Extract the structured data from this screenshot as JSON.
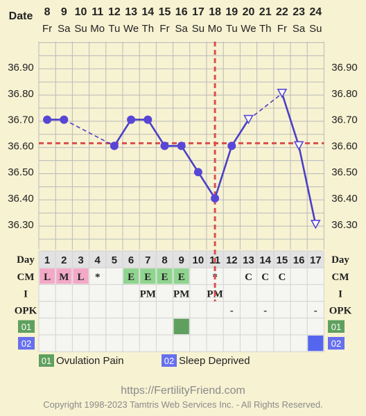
{
  "chart_data": {
    "type": "line",
    "header": {
      "date_label": "Date"
    },
    "dates": [
      "8",
      "9",
      "10",
      "11",
      "12",
      "13",
      "14",
      "15",
      "16",
      "17",
      "18",
      "19",
      "20",
      "21",
      "22",
      "23",
      "24"
    ],
    "weekdays": [
      "Fr",
      "Sa",
      "Su",
      "Mo",
      "Tu",
      "We",
      "Th",
      "Fr",
      "Sa",
      "Su",
      "Mo",
      "Tu",
      "We",
      "Th",
      "Fr",
      "Sa",
      "Su"
    ],
    "y_ticks": [
      "36.90",
      "36.80",
      "36.70",
      "36.60",
      "36.50",
      "36.40",
      "36.30"
    ],
    "ylim": [
      36.25,
      36.95
    ],
    "cover_line": 36.61,
    "ovulation_cycle_day": 11,
    "temperatures": [
      {
        "day": 1,
        "temp": 36.7,
        "marker": "filled"
      },
      {
        "day": 2,
        "temp": 36.7,
        "marker": "filled"
      },
      {
        "day": 5,
        "temp": 36.6,
        "marker": "filled"
      },
      {
        "day": 6,
        "temp": 36.7,
        "marker": "filled"
      },
      {
        "day": 7,
        "temp": 36.7,
        "marker": "filled"
      },
      {
        "day": 8,
        "temp": 36.6,
        "marker": "filled"
      },
      {
        "day": 9,
        "temp": 36.6,
        "marker": "filled"
      },
      {
        "day": 10,
        "temp": 36.5,
        "marker": "filled"
      },
      {
        "day": 11,
        "temp": 36.4,
        "marker": "filled"
      },
      {
        "day": 12,
        "temp": 36.6,
        "marker": "filled"
      },
      {
        "day": 13,
        "temp": 36.7,
        "marker": "open-triangle"
      },
      {
        "day": 15,
        "temp": 36.8,
        "marker": "open-triangle"
      },
      {
        "day": 16,
        "temp": 36.6,
        "marker": "open-triangle"
      },
      {
        "day": 17,
        "temp": 36.3,
        "marker": "open-triangle"
      }
    ],
    "segments": [
      {
        "from": 1,
        "to": 2,
        "style": "solid"
      },
      {
        "from": 2,
        "to": 5,
        "style": "dashed"
      },
      {
        "from": 5,
        "to": 6,
        "style": "solid"
      },
      {
        "from": 6,
        "to": 7,
        "style": "solid"
      },
      {
        "from": 7,
        "to": 8,
        "style": "solid"
      },
      {
        "from": 8,
        "to": 9,
        "style": "solid"
      },
      {
        "from": 9,
        "to": 10,
        "style": "solid"
      },
      {
        "from": 10,
        "to": 11,
        "style": "solid"
      },
      {
        "from": 11,
        "to": 12,
        "style": "solid"
      },
      {
        "from": 12,
        "to": 13,
        "style": "solid"
      },
      {
        "from": 13,
        "to": 15,
        "style": "dashed"
      },
      {
        "from": 15,
        "to": 16,
        "style": "solid"
      },
      {
        "from": 16,
        "to": 17,
        "style": "solid"
      }
    ],
    "table": {
      "day_label": "Day",
      "cycle_days": [
        "1",
        "2",
        "3",
        "4",
        "5",
        "6",
        "7",
        "8",
        "9",
        "10",
        "11",
        "12",
        "13",
        "14",
        "15",
        "16",
        "17"
      ],
      "rows": [
        {
          "label": "CM",
          "cells": [
            "L",
            "M",
            "L",
            "*",
            "",
            "E",
            "E",
            "E",
            "E",
            "",
            "*",
            "",
            "C",
            "C",
            "C",
            "",
            ""
          ],
          "cell_colors": [
            "#f2a9c6",
            "#f2a9c6",
            "#f2a9c6",
            "",
            "",
            "#8fd48f",
            "#8fd48f",
            "#8fd48f",
            "#8fd48f",
            "",
            "",
            "",
            "",
            "",
            "",
            "",
            ""
          ]
        },
        {
          "label": "I",
          "cells": [
            "",
            "",
            "",
            "",
            "",
            "",
            "PM",
            "",
            "PM",
            "",
            "PM",
            "",
            "",
            "",
            "",
            "",
            ""
          ]
        },
        {
          "label": "OPK",
          "cells": [
            "",
            "",
            "",
            "",
            "",
            "",
            "",
            "",
            "",
            "",
            "",
            "-",
            "",
            "-",
            "",
            "",
            "-"
          ]
        },
        {
          "label": "01",
          "cells": [
            "",
            "",
            "",
            "",
            "",
            "",
            "",
            "",
            "",
            "",
            "",
            "",
            "",
            "",
            "",
            "",
            ""
          ],
          "cell_colors": [
            "",
            "",
            "",
            "",
            "",
            "",
            "",
            "",
            "#5fa05f",
            "",
            "",
            "",
            "",
            "",
            "",
            "",
            ""
          ]
        },
        {
          "label": "02",
          "cells": [
            "",
            "",
            "",
            "",
            "",
            "",
            "",
            "",
            "",
            "",
            "",
            "",
            "",
            "",
            "",
            "",
            ""
          ],
          "cell_colors": [
            "",
            "",
            "",
            "",
            "",
            "",
            "",
            "",
            "",
            "",
            "",
            "",
            "",
            "",
            "",
            "",
            "#5566ee"
          ]
        }
      ]
    },
    "legend": [
      {
        "code": "01",
        "label": "Ovulation Pain",
        "color": "#5fa05f"
      },
      {
        "code": "02",
        "label": "Sleep Deprived",
        "color": "#6670ee"
      }
    ],
    "colors": {
      "line": "#4a3fc4",
      "marker": "#5846d6",
      "cover": "#d94f4f",
      "grid": "#b9b9b9",
      "panel_bg": "#f7f2d2",
      "table_bg": "#f5f5f1",
      "day_row_bg": "#e2e2e2"
    }
  },
  "footer": {
    "site": "https://FertilityFriend.com",
    "copyright": "Copyright 1998-2023 Tamtris Web Services Inc. - All Rights Reserved."
  }
}
